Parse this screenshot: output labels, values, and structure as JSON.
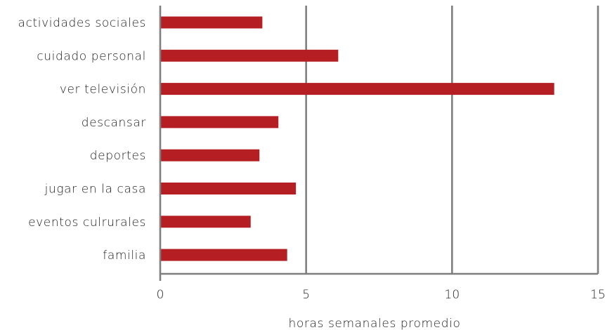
{
  "chart_data": {
    "type": "bar",
    "orientation": "horizontal",
    "categories": [
      "actividades sociales",
      "cuidado personal",
      "ver televisión",
      "descansar",
      "deportes",
      "jugar en la casa",
      "eventos culrurales",
      "familia"
    ],
    "values": [
      3.5,
      6.1,
      13.5,
      4.05,
      3.4,
      4.65,
      3.1,
      4.35
    ],
    "title": "",
    "xlabel": "horas semanales promedio",
    "ylabel": "",
    "xlim": [
      0,
      15
    ],
    "xticks": [
      0,
      5,
      10,
      15
    ],
    "xtick_labels": [
      "0",
      "5",
      "10",
      "15"
    ],
    "grid": "vertical",
    "bar_color": "#b51f24",
    "grid_color": "#7f7f7f"
  }
}
